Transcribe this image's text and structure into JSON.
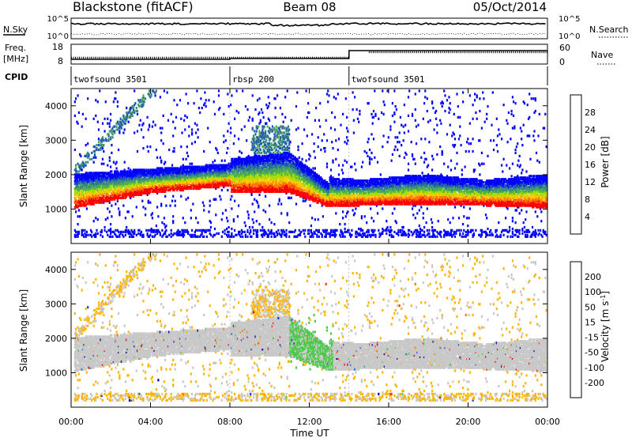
{
  "header": {
    "title": "Blackstone (fitACF)",
    "beam": "Beam 08",
    "date": "05/Oct/2014"
  },
  "top_panels": {
    "nsky_label": "N.Sky",
    "nsky_ticks": [
      "10^5",
      "10^0"
    ],
    "nsearch_label": "N.Search",
    "nsearch_ticks": [
      "10^5",
      "10^0"
    ],
    "freq_label": "Freq.",
    "freq_unit": "[MHz]",
    "freq_ticks": [
      "18",
      "8"
    ],
    "nave_label": "Nave",
    "nave_ticks": [
      "60",
      "0"
    ],
    "cpid_label": "CPID"
  },
  "cpid_segments": [
    {
      "label": "twofsound 3501",
      "start_hour": 0
    },
    {
      "label": "rbsp 200",
      "start_hour": 8
    },
    {
      "label": "twofsound 3501",
      "start_hour": 14
    }
  ],
  "chart_data": [
    {
      "type": "heatmap",
      "panel": "power",
      "ylabel": "Slant Range [km]",
      "xlim": [
        0,
        24
      ],
      "ylim": [
        0,
        4500
      ],
      "y_ticks": [
        "1000",
        "2000",
        "3000",
        "4000"
      ],
      "colorbar_label": "Power [dB]",
      "colorbar_ticks": [
        "4",
        "8",
        "12",
        "16",
        "20",
        "24",
        "28"
      ],
      "colorbar_colors": [
        "#0000ff",
        "#1e5ab4",
        "#3c8c78",
        "#4cb24a",
        "#aadc00",
        "#ffc800",
        "#ff7800",
        "#ff0000"
      ]
    },
    {
      "type": "heatmap",
      "panel": "velocity",
      "ylabel": "Slant Range [km]",
      "xlabel": "Time UT",
      "xlim": [
        0,
        24
      ],
      "ylim": [
        0,
        4500
      ],
      "y_ticks": [
        "1000",
        "2000",
        "3000",
        "4000"
      ],
      "x_ticks": [
        "00:00",
        "04:00",
        "08:00",
        "12:00",
        "16:00",
        "20:00",
        "00:00"
      ],
      "colorbar_label": "Velocity [m s",
      "colorbar_sup": "-1",
      "colorbar_close": "]",
      "colorbar_ticks": [
        "200",
        "100",
        "50",
        "15",
        "-15",
        "-50",
        "-100",
        "-200"
      ],
      "colorbar_colors": [
        "#0000a0",
        "#1e3cc8",
        "#2878c8",
        "#50c850",
        "#c8c8c8",
        "#ffb400",
        "#ff7800",
        "#ff3c00",
        "#e60000"
      ]
    }
  ]
}
